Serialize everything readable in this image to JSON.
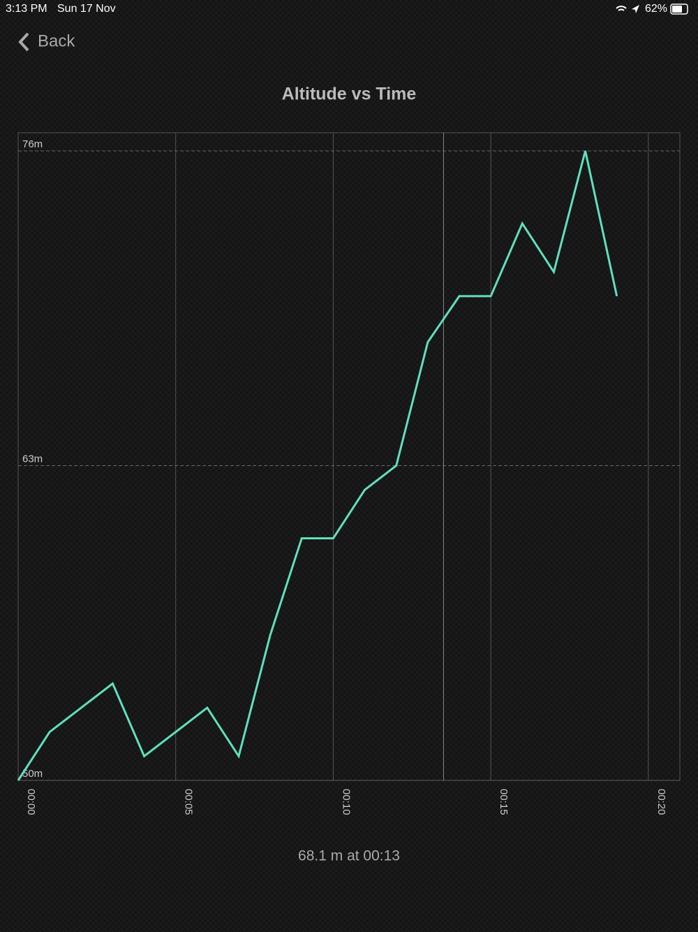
{
  "status_bar": {
    "time": "3:13 PM",
    "date": "Sun 17 Nov",
    "battery": "62%"
  },
  "nav": {
    "back": "Back"
  },
  "chart_data": {
    "type": "line",
    "title": "Altitude vs Time",
    "x": [
      0,
      1,
      2,
      3,
      4,
      5,
      6,
      7,
      8,
      9,
      10,
      11,
      12,
      13,
      14,
      15,
      16,
      17,
      18,
      19
    ],
    "series": [
      {
        "name": "Altitude",
        "color": "#5fe0bd",
        "values": [
          50,
          52,
          53,
          54,
          51,
          52,
          53,
          51,
          56,
          60,
          60,
          62,
          63,
          68.1,
          70,
          70,
          73,
          71,
          76,
          70
        ]
      }
    ],
    "xlim": [
      0,
      21
    ],
    "ylim": [
      50,
      76.75
    ],
    "xticks": [
      {
        "value": 0,
        "label": "00:00"
      },
      {
        "value": 5,
        "label": "00:05"
      },
      {
        "value": 10,
        "label": "00:10"
      },
      {
        "value": 15,
        "label": "00:15"
      },
      {
        "value": 20,
        "label": "00:20"
      }
    ],
    "yticks": [
      {
        "value": 50,
        "label": "50m"
      },
      {
        "value": 63,
        "label": "63m"
      },
      {
        "value": 76,
        "label": "76m"
      }
    ],
    "selected_x": 13.5,
    "grid": true
  },
  "readout": "68.1 m at 00:13"
}
